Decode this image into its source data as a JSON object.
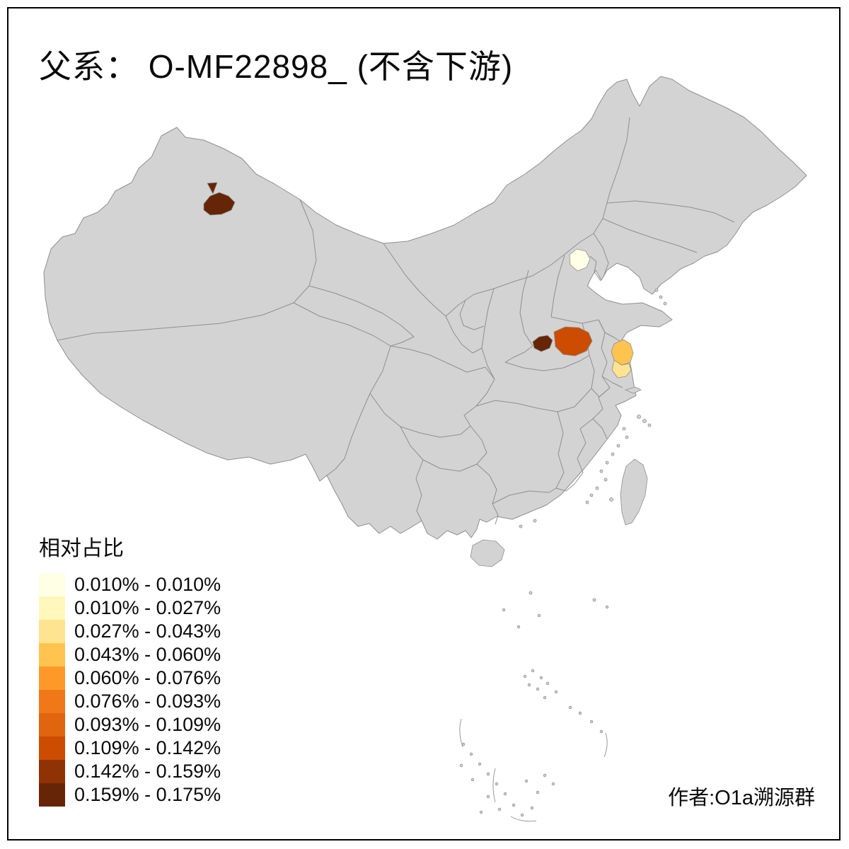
{
  "title": "父系： O-MF22898_ (不含下游)",
  "legend": {
    "title": "相对占比",
    "items": [
      {
        "label": "0.010% - 0.010%",
        "color": "#FFFFE5"
      },
      {
        "label": "0.010% - 0.027%",
        "color": "#FFF7BC"
      },
      {
        "label": "0.027% - 0.043%",
        "color": "#FEE391"
      },
      {
        "label": "0.043% - 0.060%",
        "color": "#FEC44F"
      },
      {
        "label": "0.060% - 0.076%",
        "color": "#FE9929"
      },
      {
        "label": "0.076% - 0.093%",
        "color": "#F07818"
      },
      {
        "label": "0.093% - 0.109%",
        "color": "#E1640E"
      },
      {
        "label": "0.109% - 0.142%",
        "color": "#CC4C02"
      },
      {
        "label": "0.142% - 0.159%",
        "color": "#8F3204"
      },
      {
        "label": "0.159% - 0.175%",
        "color": "#662506"
      }
    ]
  },
  "credit": "作者:O1a溯源群",
  "map": {
    "base_fill": "#D3D3D3",
    "border_color": "#8F8F8F",
    "regions": [
      {
        "name": "xinjiang-highlight",
        "color": "#662506"
      },
      {
        "name": "xinjiang-highlight-triangle",
        "color": "#662506"
      },
      {
        "name": "beijing-highlight",
        "color": "#FFFFE5"
      },
      {
        "name": "henan-dark-highlight",
        "color": "#662506"
      },
      {
        "name": "henan-anhui-orange-highlight",
        "color": "#CC4C02"
      },
      {
        "name": "jiangsu-north-highlight",
        "color": "#FEC44F"
      },
      {
        "name": "jiangsu-south-highlight",
        "color": "#FEE391"
      }
    ]
  }
}
